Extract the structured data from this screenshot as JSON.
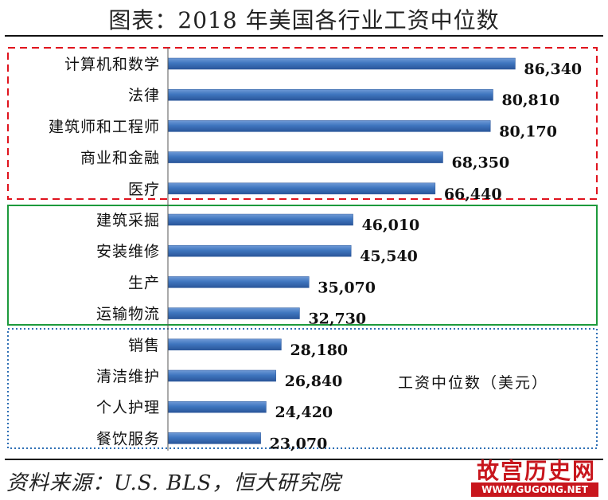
{
  "header": {
    "title": "图表：2018 年美国各行业工资中位数"
  },
  "footer": {
    "source": "资料来源：U.S. BLS，恒大研究院",
    "watermark": "故宫历史网",
    "watermark_url": "WWW.GUGONG.NET"
  },
  "chart_data": {
    "type": "bar",
    "orientation": "horizontal",
    "title": "图表：2018 年美国各行业工资中位数",
    "categories": [
      "计算机和数学",
      "法律",
      "建筑师和工程师",
      "商业和金融",
      "医疗",
      "建筑采掘",
      "安装维修",
      "生产",
      "运输物流",
      "销售",
      "清洁维护",
      "个人护理",
      "餐饮服务"
    ],
    "values": [
      86340,
      80810,
      80170,
      68350,
      66440,
      46010,
      45540,
      35070,
      32730,
      28180,
      26840,
      24420,
      23070
    ],
    "value_labels": [
      "86,340",
      "80,810",
      "80,170",
      "68,350",
      "66,440",
      "46,010",
      "45,540",
      "35,070",
      "32,730",
      "28,180",
      "26,840",
      "24,420",
      "23,070"
    ],
    "unit_annotation": "工资中位数（美元）",
    "xlim": [
      0,
      90000
    ],
    "groups": [
      {
        "start": 0,
        "end": 4,
        "border_color": "#e0141e",
        "border_style": "dashed"
      },
      {
        "start": 5,
        "end": 8,
        "border_color": "#1d9a3c",
        "border_style": "solid"
      },
      {
        "start": 9,
        "end": 12,
        "border_color": "#2e6fb5",
        "border_style": "dotted"
      }
    ],
    "bar_color": "#3f76bf",
    "grid": false,
    "legend": "none"
  }
}
